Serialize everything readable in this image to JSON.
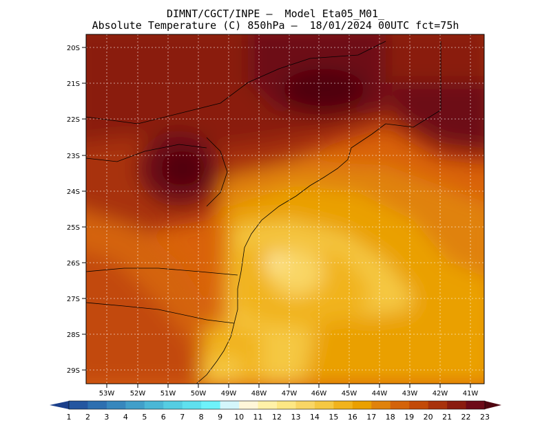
{
  "title_line1": "DIMNT/CGCT/INPE –  Model Eta05_M01_",
  "title_line2": "Absolute Temperature (C) 850hPa –  18/01/2024 00UTC fct=75h",
  "lat_labels": [
    "20S",
    "21S",
    "22S",
    "23S",
    "24S",
    "25S",
    "26S",
    "27S",
    "28S",
    "29S"
  ],
  "lon_labels": [
    "53W",
    "52W",
    "51W",
    "50W",
    "49W",
    "48W",
    "47W",
    "46W",
    "45W",
    "44W",
    "43W",
    "42W",
    "41W"
  ],
  "colorbar": {
    "labels": [
      "1",
      "2",
      "3",
      "4",
      "5",
      "6",
      "7",
      "8",
      "9",
      "10",
      "11",
      "12",
      "13",
      "14",
      "15",
      "16",
      "17",
      "18",
      "19",
      "20",
      "21",
      "22",
      "23"
    ],
    "colors": [
      "#1b3f8b",
      "#2456a0",
      "#2d6fb0",
      "#3787bd",
      "#419fc9",
      "#4bb7d6",
      "#55cde2",
      "#5fe0ee",
      "#6ef2fa",
      "#d4f6fb",
      "#fff6d9",
      "#fff1a8",
      "#fde784",
      "#f9d665",
      "#f5c842",
      "#f1b31c",
      "#eaa000",
      "#e0820a",
      "#d4630a",
      "#c24a08",
      "#a8320b",
      "#8a1c0f",
      "#6d0a18",
      "#4f0510"
    ],
    "left_arrow_color": "#1b3f8b",
    "right_arrow_color": "#4f0510"
  }
}
